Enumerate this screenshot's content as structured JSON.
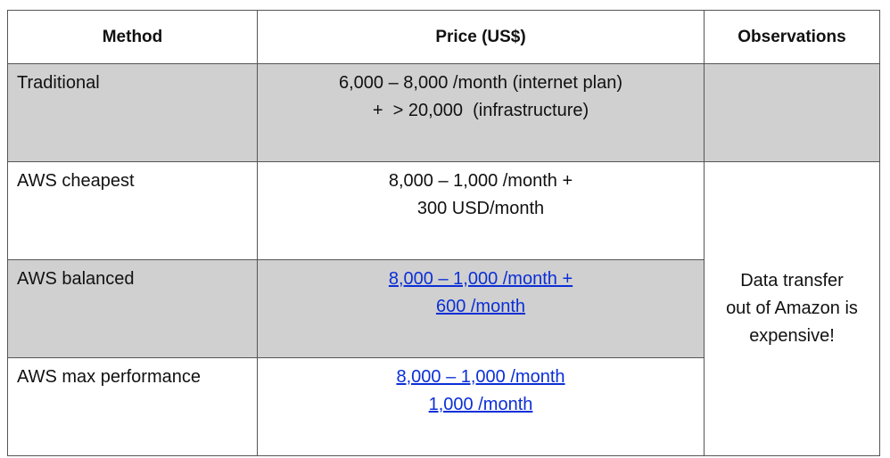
{
  "table": {
    "headers": {
      "method": "Method",
      "price": "Price (US$)",
      "observations": "Observations"
    },
    "rows": [
      {
        "method": "Traditional",
        "price_line1": "6,000 – 8,000 /month (internet plan)",
        "price_line2": "+  > 20,000  (infrastructure)",
        "shaded": true,
        "linked": false
      },
      {
        "method": "AWS cheapest",
        "price_line1": "8,000 – 1,000 /month +",
        "price_line2": "300 USD/month",
        "shaded": false,
        "linked": false
      },
      {
        "method": "AWS balanced",
        "price_line1": "8,000 – 1,000 /month +",
        "price_line2": "600 /month",
        "shaded": true,
        "linked": true
      },
      {
        "method": "AWS max performance",
        "price_line1": "8,000 – 1,000 /month",
        "price_line2": "1,000 /month",
        "shaded": false,
        "linked": true
      }
    ],
    "observation": {
      "line1": "Data transfer",
      "line2": "out of Amazon is",
      "line3": "expensive!"
    }
  },
  "colors": {
    "shade": "#d0d0d0",
    "link": "#0b2fd6",
    "border": "#555555"
  }
}
